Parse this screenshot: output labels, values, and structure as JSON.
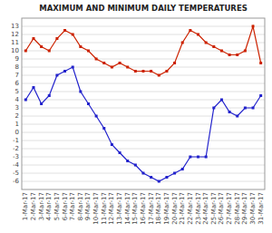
{
  "chart_data": {
    "type": "line",
    "title": "MAXIMUM AND MINIMUM DAILY TEMPERATURES",
    "categories": [
      "1-Mar-17",
      "2-Mar-17",
      "3-Mar-17",
      "4-Mar-17",
      "5-Mar-17",
      "6-Mar-17",
      "7-Mar-17",
      "8-Mar-17",
      "9-Mar-17",
      "10-Mar-17",
      "11-Mar-17",
      "12-Mar-17",
      "13-Mar-17",
      "14-Mar-17",
      "15-Mar-17",
      "16-Mar-17",
      "17-Mar-17",
      "18-Mar-17",
      "19-Mar-17",
      "20-Mar-17",
      "21-Mar-17",
      "22-Mar-17",
      "23-Mar-17",
      "24-Mar-17",
      "25-Mar-17",
      "26-Mar-17",
      "27-Mar-17",
      "28-Mar-17",
      "29-Mar-17",
      "30-Mar-17",
      "31-Mar-17"
    ],
    "series": [
      {
        "color": "#cc2200",
        "marker": "square",
        "values": [
          10.0,
          11.5,
          10.5,
          10.0,
          11.5,
          12.5,
          12.0,
          10.5,
          10.0,
          9.0,
          8.5,
          8.0,
          8.5,
          8.0,
          7.5,
          7.5,
          7.5,
          7.0,
          7.5,
          8.5,
          11.0,
          12.5,
          12.0,
          11.0,
          10.5,
          10.0,
          9.5,
          9.5,
          10.0,
          13.0,
          8.5
        ]
      },
      {
        "color": "#2222cc",
        "marker": "square",
        "values": [
          4.0,
          5.5,
          3.5,
          4.5,
          7.0,
          7.5,
          8.0,
          5.0,
          3.5,
          2.0,
          0.5,
          -1.5,
          -2.5,
          -3.5,
          -4.0,
          -5.0,
          -5.5,
          -6.0,
          -5.5,
          -5.0,
          -4.5,
          -3.0,
          -3.0,
          -3.0,
          3.0,
          4.0,
          2.5,
          2.0,
          3.0,
          3.0,
          4.5
        ]
      }
    ],
    "ylim": [
      -7,
      14
    ],
    "yticks": [
      -6,
      -5,
      -4,
      -3,
      -2,
      -1,
      0,
      1,
      2,
      3,
      4,
      5,
      6,
      7,
      8,
      9,
      10,
      11,
      12,
      13
    ],
    "grid": true
  }
}
